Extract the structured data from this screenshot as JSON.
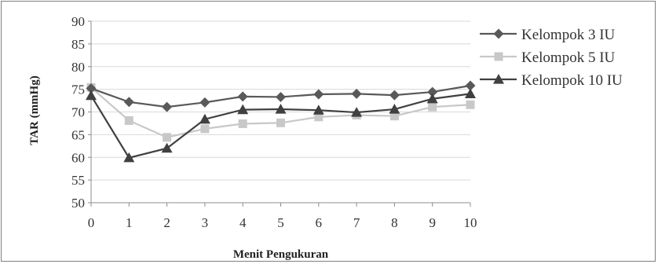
{
  "chart_data": {
    "type": "line",
    "title": "",
    "xlabel": "Menit Pengukuran",
    "ylabel": "TAR (mmHg)",
    "x": [
      0,
      1,
      2,
      3,
      4,
      5,
      6,
      7,
      8,
      9,
      10
    ],
    "ylim": [
      50,
      90
    ],
    "yticks": [
      50,
      55,
      60,
      65,
      70,
      75,
      80,
      85,
      90
    ],
    "grid": true,
    "legend_position": "top-right",
    "series": [
      {
        "name": "Kelompok 3 IU",
        "marker": "diamond",
        "color": "#595959",
        "values": [
          75.2,
          72.2,
          71.1,
          72.1,
          73.4,
          73.3,
          73.9,
          74.0,
          73.7,
          74.4,
          75.8
        ]
      },
      {
        "name": "Kelompok 5 IU",
        "marker": "square",
        "color": "#c8c8c8",
        "values": [
          75.4,
          68.1,
          64.4,
          66.3,
          67.4,
          67.6,
          68.9,
          69.3,
          69.1,
          71.1,
          71.6
        ]
      },
      {
        "name": "Kelompok 10 IU",
        "marker": "triangle",
        "color": "#404040",
        "values": [
          73.6,
          59.9,
          62.0,
          68.4,
          70.5,
          70.6,
          70.4,
          69.9,
          70.6,
          72.9,
          74.0
        ]
      }
    ]
  }
}
